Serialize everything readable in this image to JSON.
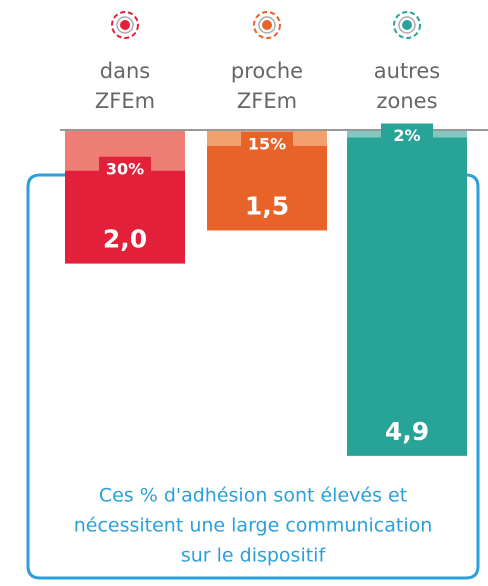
{
  "chart_data": {
    "type": "hanging-bar",
    "categories": [
      [
        "dans",
        "ZFEm"
      ],
      [
        "proche",
        "ZFEm"
      ],
      [
        "autres",
        "zones"
      ]
    ],
    "values": [
      2.0,
      1.5,
      4.9
    ],
    "value_labels": [
      "2,0",
      "1,5",
      "4,9"
    ],
    "shares": [
      30,
      15,
      2
    ],
    "share_labels": [
      "30%",
      "15%",
      "2%"
    ],
    "colors": [
      "#e3203a",
      "#e8632a",
      "#27a397"
    ],
    "light_colors": [
      "#ee7d74",
      "#f2a06e",
      "#83c8c0"
    ],
    "annotation": [
      "Ces % d'adhésion sont élevés et",
      "nécessitent une large communication",
      "sur le dispositif"
    ],
    "annotation_color": "#2b9fd9"
  }
}
